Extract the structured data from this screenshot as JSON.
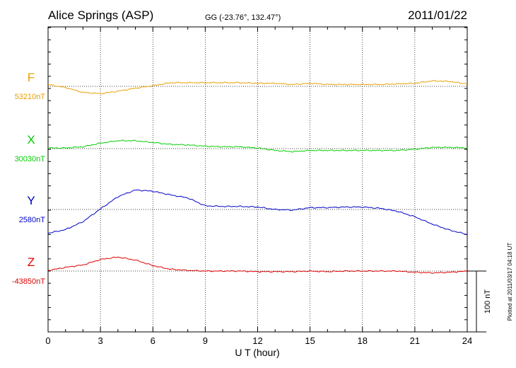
{
  "header": {
    "station": "Alice Springs (ASP)",
    "coords": "GG (-23.76°, 132.47°)",
    "date": "2011/01/22"
  },
  "plotted_note": "Plotted at 2011/03/17 04:18 UT",
  "scale_bar": {
    "label": "100 nT",
    "value_nT": 100
  },
  "colors": {
    "F": "#e8a000",
    "X": "#00d000",
    "Y": "#0000c8",
    "Z": "#e00000"
  },
  "chart_data": {
    "type": "line",
    "title": "Alice Springs (ASP)",
    "xlabel": "U T (hour)",
    "ylabel": "",
    "xlim": [
      0,
      24
    ],
    "x_ticks": [
      "0",
      "3",
      "6",
      "9",
      "12",
      "15",
      "18",
      "21",
      "24"
    ],
    "grid": true,
    "x": [
      0,
      1,
      2,
      3,
      4,
      5,
      6,
      7,
      8,
      9,
      10,
      11,
      12,
      13,
      14,
      15,
      16,
      17,
      18,
      19,
      20,
      21,
      22,
      23,
      24
    ],
    "series": [
      {
        "name": "F",
        "baseline_label": "53210nT",
        "baseline_nT": 53210,
        "values": [
          53213,
          53208,
          53200,
          53198,
          53202,
          53207,
          53211,
          53216,
          53216,
          53216,
          53216,
          53216,
          53215,
          53215,
          53213,
          53215,
          53213,
          53213,
          53213,
          53213,
          53214,
          53215,
          53219,
          53218,
          53214
        ]
      },
      {
        "name": "X",
        "baseline_label": "30030nT",
        "baseline_nT": 30030,
        "values": [
          30031,
          30031,
          30033,
          30039,
          30043,
          30043,
          30040,
          30037,
          30036,
          30034,
          30033,
          30033,
          30031,
          30027,
          30025,
          30027,
          30027,
          30027,
          30027,
          30027,
          30027,
          30029,
          30032,
          30032,
          30031
        ]
      },
      {
        "name": "Y",
        "baseline_label": "2580nT",
        "baseline_nT": 2580,
        "values": [
          2541,
          2547,
          2560,
          2581,
          2601,
          2612,
          2610,
          2604,
          2599,
          2586,
          2585,
          2585,
          2584,
          2580,
          2579,
          2583,
          2583,
          2584,
          2584,
          2582,
          2577,
          2568,
          2556,
          2546,
          2539
        ]
      },
      {
        "name": "Z",
        "baseline_label": "-43850nT",
        "baseline_nT": -43850,
        "values": [
          -43849,
          -43844,
          -43840,
          -43831,
          -43827,
          -43832,
          -43841,
          -43847,
          -43849,
          -43850,
          -43850,
          -43850,
          -43851,
          -43851,
          -43851,
          -43850,
          -43851,
          -43850,
          -43850,
          -43850,
          -43850,
          -43852,
          -43853,
          -43852,
          -43850
        ]
      }
    ]
  }
}
